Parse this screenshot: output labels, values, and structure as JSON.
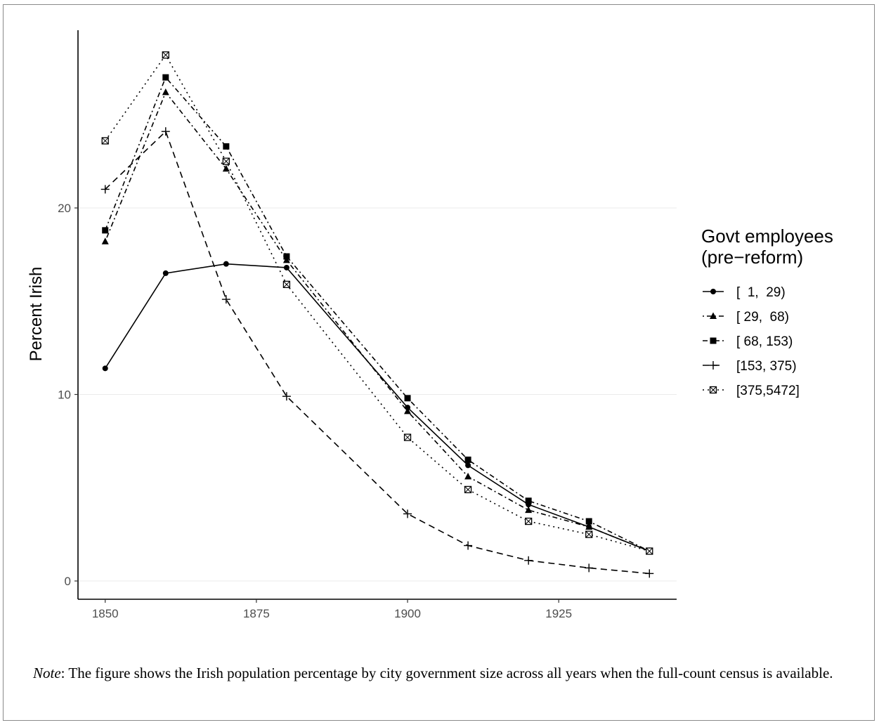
{
  "chart_data": {
    "type": "line",
    "ylabel": "Percent Irish",
    "xlabel": "",
    "xlim": [
      1850,
      1940
    ],
    "ylim": [
      0,
      28.5
    ],
    "x_ticks": [
      1850,
      1875,
      1900,
      1925
    ],
    "y_ticks": [
      0,
      10,
      20
    ],
    "grid": "horizontal major lines",
    "legend_position": "right",
    "legend_title": [
      "Govt employees",
      "(pre−reform)"
    ],
    "x": [
      1850,
      1860,
      1870,
      1880,
      1900,
      1910,
      1920,
      1930,
      1940
    ],
    "series": [
      {
        "name": "[  1,  29)",
        "dash": "solid",
        "marker": "circle",
        "values": [
          11.4,
          16.5,
          17.0,
          16.8,
          9.3,
          6.2,
          4.1,
          2.9,
          1.6
        ]
      },
      {
        "name": "[ 29,  68)",
        "dash": "dotdash",
        "marker": "triangle",
        "values": [
          18.2,
          26.2,
          22.1,
          17.2,
          9.1,
          5.6,
          3.8,
          2.9,
          1.6
        ]
      },
      {
        "name": "[ 68, 153)",
        "dash": "dashdot",
        "marker": "square",
        "values": [
          18.8,
          27.0,
          23.3,
          17.4,
          9.8,
          6.5,
          4.3,
          3.2,
          1.6
        ]
      },
      {
        "name": "[153, 375)",
        "dash": "dashed",
        "marker": "plus",
        "values": [
          21.0,
          24.1,
          15.1,
          9.9,
          3.6,
          1.9,
          1.1,
          0.7,
          0.4
        ]
      },
      {
        "name": "[375,5472]",
        "dash": "dotted",
        "marker": "boxx",
        "values": [
          23.6,
          28.2,
          22.5,
          15.9,
          7.7,
          4.9,
          3.2,
          2.5,
          1.6
        ]
      }
    ]
  },
  "note": {
    "label": "Note",
    "text": ": The figure shows the Irish population percentage by city government size across all years when the full-count census is available."
  }
}
